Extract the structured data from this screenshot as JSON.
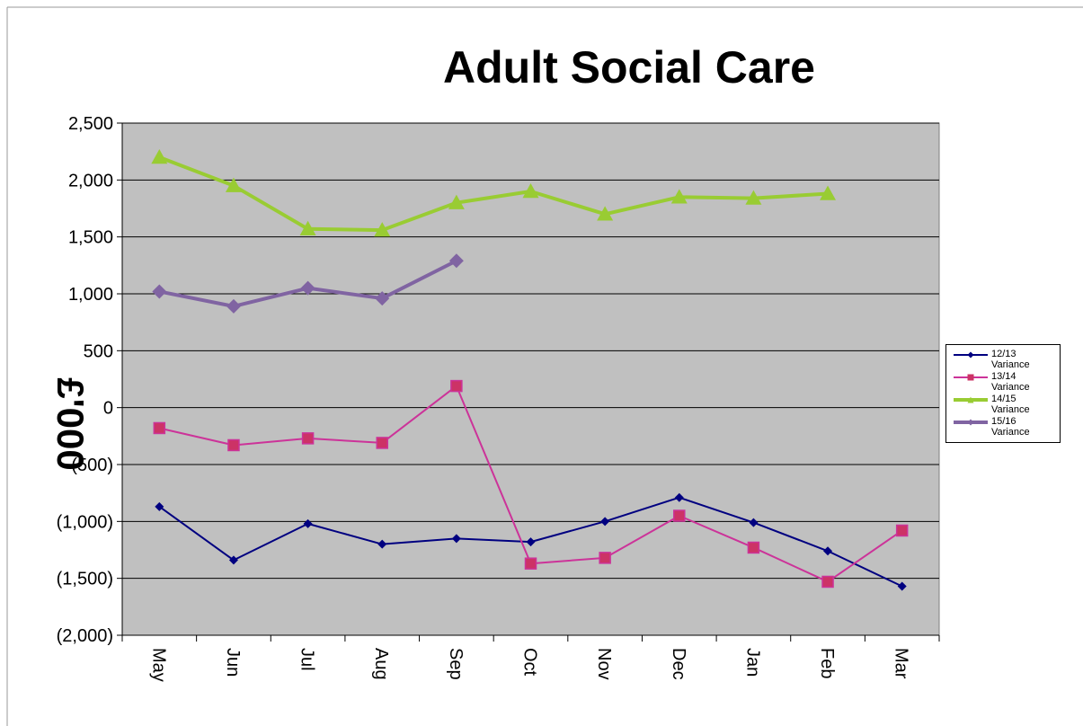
{
  "chart_data": {
    "type": "line",
    "title": "Adult Social Care",
    "y_label": "£'000",
    "categories": [
      "May",
      "Jun",
      "Jul",
      "Aug",
      "Sep",
      "Oct",
      "Nov",
      "Dec",
      "Jan",
      "Feb",
      "Mar"
    ],
    "series": [
      {
        "name": "12/13 Variance",
        "color": "#000080",
        "marker": "diamond",
        "values": [
          -870,
          -1340,
          -1020,
          -1200,
          -1150,
          -1180,
          -1000,
          -790,
          -1010,
          -1260,
          -1570
        ]
      },
      {
        "name": "13/14 Variance",
        "color": "#cc3399",
        "marker": "square",
        "values": [
          -180,
          -330,
          -270,
          -310,
          190,
          -1370,
          -1320,
          -950,
          -1230,
          -1530,
          -1080
        ]
      },
      {
        "name": "14/15 Variance",
        "color": "#99cc33",
        "marker": "triangle",
        "values": [
          2200,
          1950,
          1570,
          1560,
          1800,
          1900,
          1700,
          1850,
          1840,
          1880,
          null
        ]
      },
      {
        "name": "15/16 Variance",
        "color": "#8064a2",
        "marker": "diamond",
        "values": [
          1020,
          890,
          1050,
          960,
          1290,
          null,
          null,
          null,
          null,
          null,
          null
        ]
      }
    ],
    "ylim": [
      -2000,
      2500
    ],
    "yticks": [
      {
        "value": -2000,
        "label": "(2,000)"
      },
      {
        "value": -1500,
        "label": "(1,500)"
      },
      {
        "value": -1000,
        "label": "(1,000)"
      },
      {
        "value": -500,
        "label": "(500)"
      },
      0,
      500,
      {
        "value": 1000,
        "label": "1,000"
      },
      {
        "value": 1500,
        "label": "1,500"
      },
      {
        "value": 2000,
        "label": "2,000"
      },
      {
        "value": 2500,
        "label": "2,500"
      }
    ],
    "grid": true,
    "legend": "right",
    "plot_background": "#c0c0c0"
  }
}
